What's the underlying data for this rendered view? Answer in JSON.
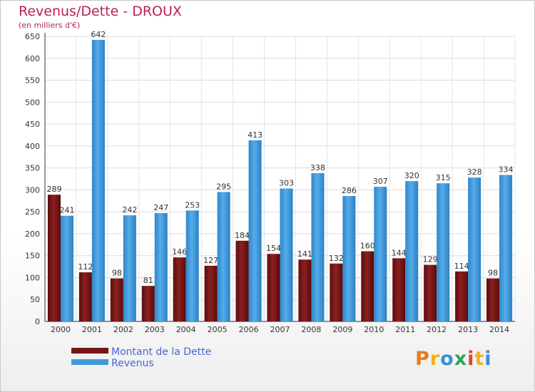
{
  "chart_data": {
    "type": "bar",
    "title": "Revenus/Dette - DROUX",
    "subtitle": "(en milliers d'€)",
    "categories": [
      "2000",
      "2001",
      "2002",
      "2003",
      "2004",
      "2005",
      "2006",
      "2007",
      "2008",
      "2009",
      "2010",
      "2011",
      "2012",
      "2013",
      "2014"
    ],
    "series": [
      {
        "name": "Montant de la Dette",
        "color": "#7a1515",
        "values": [
          289,
          112,
          98,
          81,
          146,
          127,
          184,
          154,
          141,
          132,
          160,
          144,
          129,
          114,
          98
        ]
      },
      {
        "name": "Revenus",
        "color": "#3f99db",
        "values": [
          241,
          642,
          242,
          247,
          253,
          295,
          413,
          303,
          338,
          286,
          307,
          320,
          315,
          328,
          334
        ]
      }
    ],
    "ylim": [
      0,
      650
    ],
    "yticks": [
      0,
      50,
      100,
      150,
      200,
      250,
      300,
      350,
      400,
      450,
      500,
      550,
      600,
      650
    ],
    "grid": true,
    "legend_position": "bottom-left"
  },
  "logo": {
    "letters": [
      "P",
      "r",
      "o",
      "x",
      "i",
      "t",
      "i"
    ],
    "colors": [
      "#e87a1e",
      "#f0b020",
      "#3a8fd8",
      "#2da55a",
      "#e84030",
      "#f0b020",
      "#3a8fd8"
    ]
  }
}
